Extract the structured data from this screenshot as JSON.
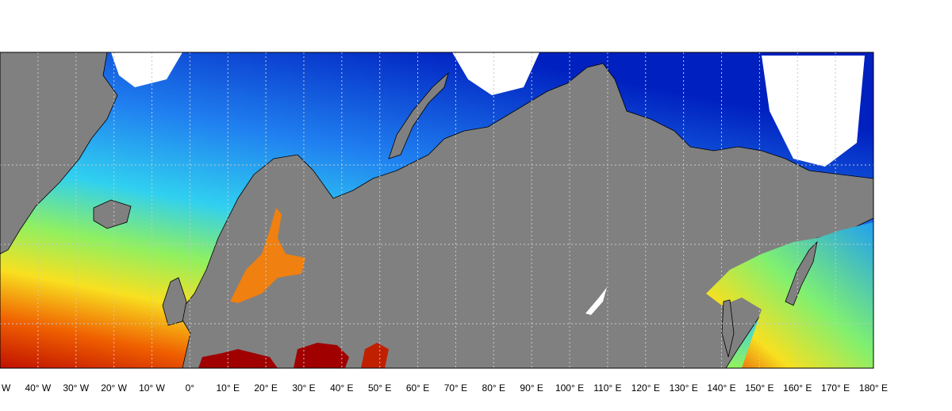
{
  "map": {
    "xlim": [
      -50,
      180
    ],
    "xticks": [
      {
        "value": -50,
        "label": "W"
      },
      {
        "value": -40,
        "label": "40° W"
      },
      {
        "value": -30,
        "label": "30° W"
      },
      {
        "value": -20,
        "label": "20° W"
      },
      {
        "value": -10,
        "label": "10° W"
      },
      {
        "value": 0,
        "label": "0°"
      },
      {
        "value": 10,
        "label": "10° E"
      },
      {
        "value": 20,
        "label": "20° E"
      },
      {
        "value": 30,
        "label": "30° E"
      },
      {
        "value": 40,
        "label": "40° E"
      },
      {
        "value": 50,
        "label": "50° E"
      },
      {
        "value": 60,
        "label": "60° E"
      },
      {
        "value": 70,
        "label": "70° E"
      },
      {
        "value": 80,
        "label": "80° E"
      },
      {
        "value": 90,
        "label": "90° E"
      },
      {
        "value": 100,
        "label": "100° E"
      },
      {
        "value": 110,
        "label": "110° E"
      },
      {
        "value": 120,
        "label": "120° E"
      },
      {
        "value": 130,
        "label": "130° E"
      },
      {
        "value": 140,
        "label": "140° E"
      },
      {
        "value": 150,
        "label": "150° E"
      },
      {
        "value": 160,
        "label": "160° E"
      },
      {
        "value": 170,
        "label": "170° E"
      },
      {
        "value": 180,
        "label": "180° E"
      }
    ]
  }
}
